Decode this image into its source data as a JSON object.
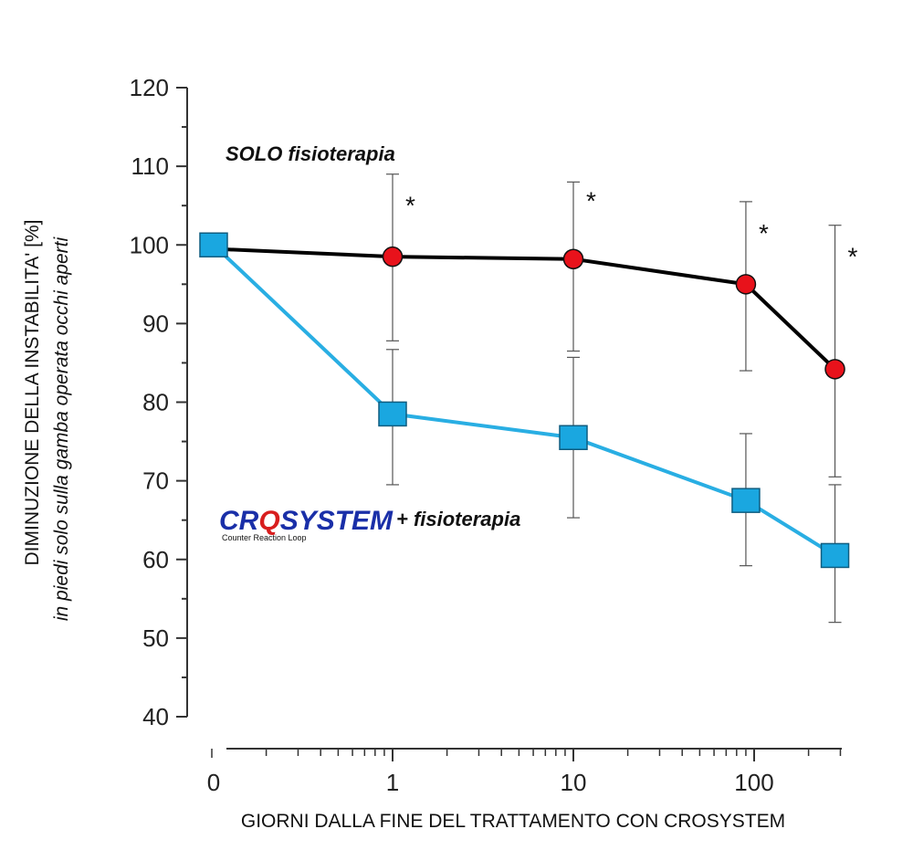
{
  "chart_data": {
    "type": "line",
    "xlabel": "GIORNI DALLA FINE DEL TRATTAMENTO CON CROSYSTEM",
    "ylabel": "DIMINUZIONE DELLA INSTABILITA' [%]",
    "ylabel_sub": "in piedi solo sulla gamba operata occhi aperti",
    "x_scale": "log",
    "x_ticks": [
      "0",
      "1",
      "10",
      "100"
    ],
    "ylim": [
      40,
      120
    ],
    "y_ticks": [
      40,
      50,
      60,
      70,
      80,
      90,
      100,
      110,
      120
    ],
    "grid": false,
    "series": [
      {
        "name": "SOLO fisioterapia",
        "color": "#000000",
        "marker_color": "#e8121b",
        "marker": "circle",
        "points": [
          {
            "x": "0",
            "y": 99.5
          },
          {
            "x": "1",
            "y": 98.5,
            "err_low": 87.8,
            "err_high": 109
          },
          {
            "x": "10",
            "y": 98.2,
            "err_low": 86.5,
            "err_high": 108
          },
          {
            "x": "90",
            "y": 95,
            "err_low": 84,
            "err_high": 105.5
          },
          {
            "x": "280",
            "y": 84.2,
            "err_low": 70.5,
            "err_high": 102.5
          }
        ]
      },
      {
        "name": "+ fisioterapia",
        "color": "#29aee3",
        "marker_color": "#1aa7e0",
        "marker": "square",
        "points": [
          {
            "x": "0",
            "y": 100
          },
          {
            "x": "1",
            "y": 78.5,
            "err_low": 69.5,
            "err_high": 86.7
          },
          {
            "x": "10",
            "y": 75.5,
            "err_low": 65.3,
            "err_high": 85.7
          },
          {
            "x": "90",
            "y": 67.5,
            "err_low": 59.2,
            "err_high": 76
          },
          {
            "x": "280",
            "y": 60.5,
            "err_low": 52,
            "err_high": 69.5
          }
        ]
      }
    ],
    "annotations": {
      "series1_label": "SOLO fisioterapia",
      "series2_label": "+ fisioterapia",
      "significance_marker": "*"
    }
  },
  "logo": {
    "text_a": "CR",
    "text_q": "Q",
    "text_b": "SYSTEM",
    "subtitle": "Counter Reaction Loop"
  }
}
